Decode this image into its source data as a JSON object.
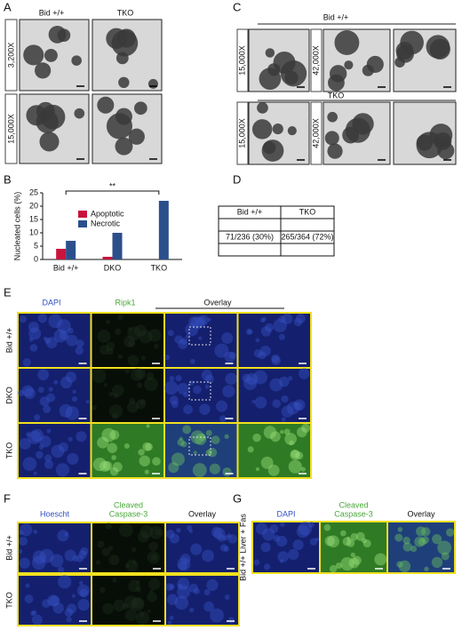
{
  "panel_a": {
    "label": "A",
    "columns": [
      "Bid +/+",
      "TKO"
    ],
    "rows": [
      "3,200X",
      "15,000X"
    ]
  },
  "chart_data": {
    "type": "bar",
    "panel_label": "B",
    "y_label": "Nucleated cells (%)",
    "categories": [
      "Bid +/+",
      "DKO",
      "TKO"
    ],
    "series": [
      {
        "name": "Apoptotic",
        "color": "#c8143c",
        "values": [
          4,
          1,
          0
        ]
      },
      {
        "name": "Necrotic",
        "color": "#2c4f8c",
        "values": [
          7,
          10,
          22
        ]
      }
    ],
    "ylim": [
      0,
      25
    ],
    "yticks": [
      0,
      5,
      10,
      15,
      20,
      25
    ],
    "annotation": "**"
  },
  "panel_c": {
    "label": "C",
    "groups": [
      {
        "title": "Bid +/+",
        "magnifications": [
          "15,000X",
          "42,000X"
        ]
      },
      {
        "title": "TKO",
        "magnifications": [
          "15,000X",
          "42,000X"
        ]
      }
    ]
  },
  "panel_d": {
    "label": "D",
    "table": {
      "header": [
        "Bid +/+",
        "TKO"
      ],
      "rows": [
        [
          "71/236 (30%)",
          "265/364 (72%)"
        ]
      ]
    }
  },
  "panel_e": {
    "label": "E",
    "columns": [
      "DAPI",
      "Ripk1",
      "Overlay"
    ],
    "rows": [
      "Bid +/+",
      "DKO",
      "TKO"
    ]
  },
  "panel_f": {
    "label": "F",
    "columns": [
      [
        "Hoescht"
      ],
      [
        "Cleaved",
        "Caspase-3"
      ],
      [
        "Overlay"
      ]
    ],
    "rows": [
      "Bid +/+",
      "TKO"
    ]
  },
  "panel_g": {
    "label": "G",
    "row": "Bid +/+ Liver + Fas",
    "columns": [
      [
        "DAPI"
      ],
      [
        "Cleaved",
        "Caspase-3"
      ],
      [
        "Overlay"
      ]
    ]
  }
}
